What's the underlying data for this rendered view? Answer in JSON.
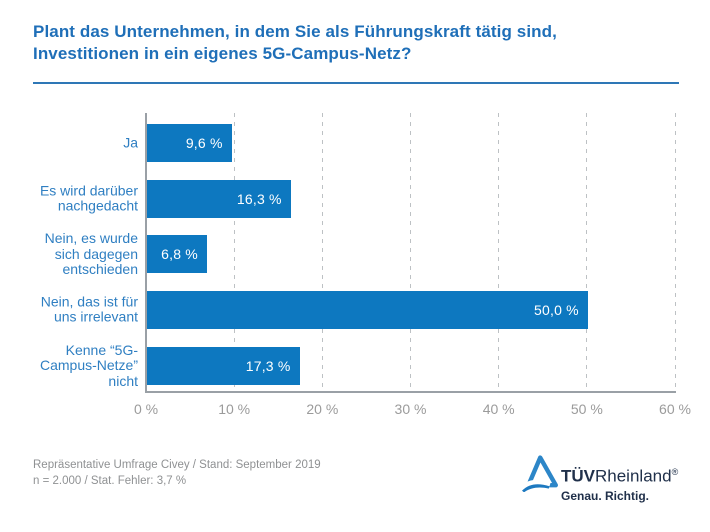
{
  "header": {
    "title": "Plant das Unternehmen, in dem Sie als Führungskraft tätig sind,\nInvestitionen in ein eigenes 5G-Campus-Netz?"
  },
  "chart_data": {
    "type": "bar",
    "orientation": "horizontal",
    "title": "Plant das Unternehmen, in dem Sie als Führungskraft tätig sind, Investitionen in ein eigenes 5G-Campus-Netz?",
    "categories": [
      "Ja",
      "Es wird darüber\nnachgedacht",
      "Nein, es wurde\nsich dagegen\nentschieden",
      "Nein, das ist für\nuns irrelevant",
      "Kenne “5G-\nCampus-Netze”\nnicht"
    ],
    "values": [
      9.6,
      16.3,
      6.8,
      50.0,
      17.3
    ],
    "value_labels": [
      "9,6 %",
      "16,3 %",
      "6,8 %",
      "50,0 %",
      "17,3 %"
    ],
    "xlabel": "",
    "ylabel": "",
    "xlim": [
      0,
      60
    ],
    "x_ticks": [
      0,
      10,
      20,
      30,
      40,
      50,
      60
    ],
    "x_tick_labels": [
      "0 %",
      "10 %",
      "20 %",
      "30 %",
      "40 %",
      "50 %",
      "60 %"
    ],
    "grid": "vertical dashed",
    "legend": "none",
    "bar_color": "#0d78c0"
  },
  "footer": {
    "source": "Repräsentative Umfrage Civey / Stand: September 2019\nn = 2.000 / Stat. Fehler: 3,7 %"
  },
  "logo": {
    "icon": "tuv-triangle-icon",
    "brand_bold": "TÜV",
    "brand_regular": "Rheinland",
    "registered": "®",
    "tagline": "Genau. Richtig."
  },
  "colors": {
    "title_blue": "#1f6fb8",
    "bar_blue": "#0d78c0",
    "category_blue": "#2f7fc2",
    "axis_gray": "#9aa0a6",
    "grid_gray": "#bdc1c4",
    "tick_gray": "#9b9b9b",
    "footer_gray": "#8f9193",
    "logo_navy": "#20304a"
  }
}
